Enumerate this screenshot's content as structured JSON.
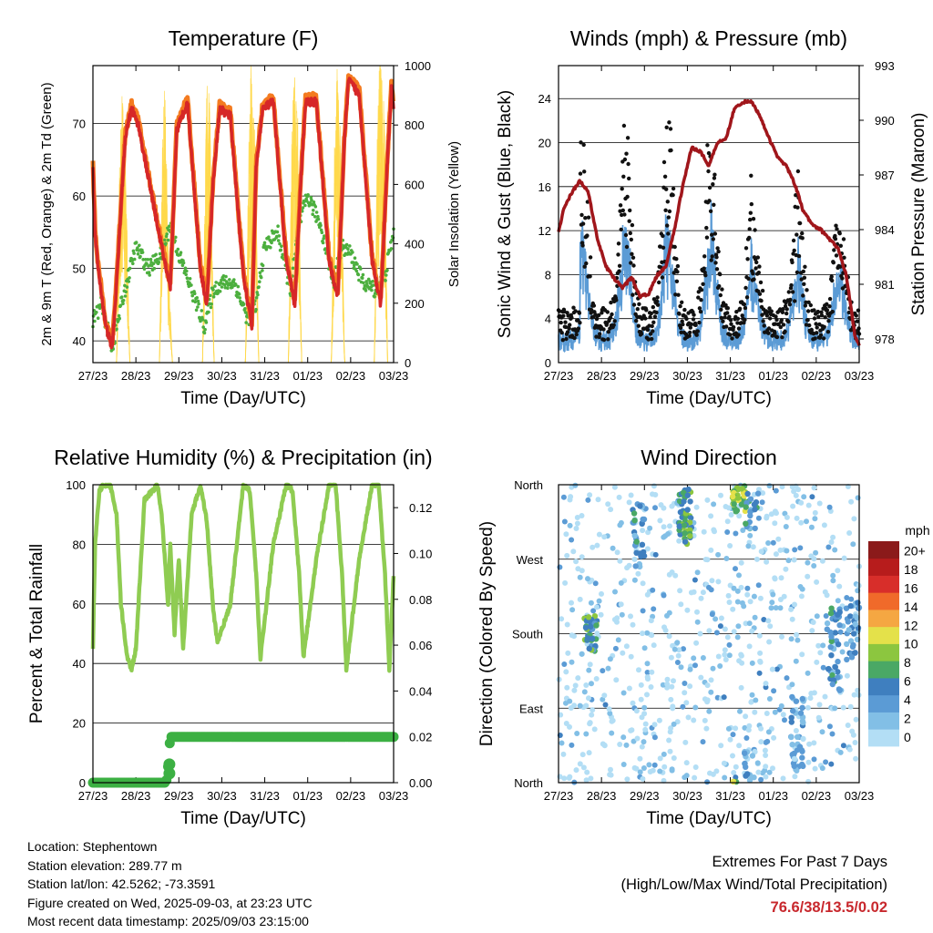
{
  "x_ticks": [
    "27/23",
    "28/23",
    "29/23",
    "30/23",
    "31/23",
    "01/23",
    "02/23",
    "03/23"
  ],
  "xlabel": "Time (Day/UTC)",
  "colors": {
    "temp_2m": "#d62728",
    "temp_9m": "#f47b20",
    "dewpoint": "#4caf3e",
    "solar": "#ffd84a",
    "gust": "#111111",
    "wind": "#5b9bd5",
    "pressure": "#a0161b",
    "rh": "#8fcc52",
    "precip": "#3cb043",
    "extreme_text": "#c8282d"
  },
  "chart_data": [
    {
      "id": "temperature",
      "type": "line",
      "title": "Temperature (F)",
      "ylabel": "2m & 9m T (Red, Orange) & 2m Td (Green)",
      "y2label": "Solar Insolation (Yellow)",
      "ylim": [
        37,
        78
      ],
      "y2lim": [
        0,
        1000
      ],
      "yticks": [
        40,
        50,
        60,
        70
      ],
      "y2ticks": [
        0,
        200,
        400,
        600,
        800,
        1000
      ],
      "days": 7,
      "series": [
        {
          "key": "temp_2m",
          "x_days": [
            0,
            0.05,
            0.12,
            0.3,
            0.45,
            0.55,
            0.75,
            0.9,
            1.05,
            1.5,
            1.7,
            1.8,
            1.95,
            2.2,
            2.5,
            2.65,
            2.8,
            2.95,
            3.2,
            3.5,
            3.7,
            3.8,
            3.95,
            4.2,
            4.5,
            4.7,
            4.85,
            4.95,
            5.2,
            5.5,
            5.7,
            5.85,
            5.95,
            6.2,
            6.5,
            6.7,
            6.85,
            6.95,
            7.0
          ],
          "y": [
            64,
            55,
            50,
            42,
            39,
            48,
            68,
            72,
            70,
            56,
            50,
            47,
            69,
            73,
            50,
            45,
            62,
            72,
            71,
            49,
            42,
            64,
            72,
            73,
            51,
            45,
            63,
            73,
            73,
            51,
            46,
            67,
            76,
            74,
            51,
            45,
            64,
            75,
            72
          ]
        },
        {
          "key": "dewpoint",
          "x_days": [
            0,
            0.2,
            0.45,
            0.7,
            1.0,
            1.3,
            1.6,
            1.8,
            2.0,
            2.3,
            2.6,
            2.8,
            3.0,
            3.3,
            3.6,
            3.8,
            4.0,
            4.3,
            4.6,
            4.8,
            5.0,
            5.3,
            5.6,
            5.8,
            6.0,
            6.3,
            6.6,
            6.8,
            7.0
          ],
          "y": [
            43,
            45,
            39,
            46,
            53,
            50,
            52,
            56,
            52,
            47,
            42,
            47,
            48,
            48,
            43,
            45,
            53,
            55,
            47,
            56,
            60,
            56,
            48,
            53,
            52,
            48,
            47,
            49,
            55
          ]
        },
        {
          "key": "solar",
          "x_days": [
            0.55,
            0.62,
            0.68,
            0.78,
            0.86,
            1.55,
            1.62,
            1.68,
            1.75,
            1.85,
            2.55,
            2.6,
            2.65,
            2.72,
            2.82,
            3.55,
            3.62,
            3.68,
            3.78,
            3.86,
            4.55,
            4.62,
            4.68,
            4.78,
            4.86,
            5.55,
            5.62,
            5.68,
            5.78,
            5.86,
            6.55,
            6.62,
            6.68,
            6.78,
            6.86
          ],
          "y": [
            0,
            600,
            880,
            500,
            0,
            0,
            700,
            900,
            350,
            0,
            0,
            450,
            880,
            820,
            0,
            0,
            650,
            920,
            700,
            0,
            0,
            650,
            900,
            750,
            0,
            0,
            650,
            950,
            700,
            0,
            0,
            700,
            980,
            800,
            0
          ]
        }
      ]
    },
    {
      "id": "winds",
      "type": "scatter",
      "title": "Winds (mph) & Pressure (mb)",
      "ylabel": "Sonic Wind & Gust (Blue, Black)",
      "y2label": "Station Pressure (Maroon)",
      "ylim": [
        0,
        27
      ],
      "y2lim": [
        976.7,
        993
      ],
      "yticks": [
        0,
        4,
        8,
        12,
        16,
        20,
        24
      ],
      "y2ticks": [
        978,
        981,
        984,
        987,
        990,
        993
      ],
      "days": 7,
      "series": [
        {
          "key": "gust",
          "name": "Gust",
          "daily_peak_mph": [
            4,
            21,
            25,
            25,
            20,
            13,
            17,
            14
          ]
        },
        {
          "key": "wind",
          "name": "Sonic Wind",
          "daily_peak_mph": [
            3,
            13,
            14,
            13,
            14,
            8,
            11,
            9
          ]
        },
        {
          "key": "pressure",
          "x_days": [
            0,
            0.1,
            0.3,
            0.5,
            0.7,
            0.9,
            1.1,
            1.3,
            1.5,
            1.7,
            1.9,
            2.1,
            2.3,
            2.5,
            2.7,
            2.9,
            3.1,
            3.3,
            3.5,
            3.7,
            3.9,
            4.1,
            4.3,
            4.5,
            4.7,
            4.9,
            5.1,
            5.3,
            5.5,
            5.7,
            5.9,
            6.1,
            6.3,
            6.5,
            6.7,
            6.9,
            7.0
          ],
          "y": [
            983.8,
            985,
            986,
            986.7,
            986,
            983.5,
            982,
            981.3,
            980.8,
            981.4,
            980.3,
            980.5,
            981.5,
            982,
            984,
            986.5,
            988.5,
            988.3,
            987.5,
            988.8,
            989,
            990.7,
            991,
            991,
            990.2,
            989,
            988,
            987.5,
            986.5,
            985,
            984.3,
            984,
            983.5,
            983,
            981.5,
            978.2,
            977.7
          ]
        }
      ]
    },
    {
      "id": "humidity",
      "type": "line",
      "title": "Relative Humidity (%) & Precipitation (in)",
      "ylabel": "Percent & Total Rainfall",
      "ylim": [
        0,
        100
      ],
      "y2lim": [
        0,
        0.13
      ],
      "yticks": [
        0,
        20,
        40,
        60,
        80,
        100
      ],
      "y2ticks": [
        "0.00",
        "0.02",
        "0.04",
        "0.06",
        "0.08",
        "0.10",
        "0.12"
      ],
      "days": 7,
      "series": [
        {
          "key": "rh",
          "name": "Relative Humidity",
          "x_days": [
            0,
            0.05,
            0.15,
            0.25,
            0.4,
            0.55,
            0.65,
            0.8,
            0.9,
            1.0,
            1.2,
            1.5,
            1.6,
            1.75,
            1.8,
            1.9,
            2.0,
            2.1,
            2.3,
            2.5,
            2.65,
            2.8,
            2.9,
            3.2,
            3.5,
            3.65,
            3.8,
            3.9,
            4.2,
            4.5,
            4.65,
            4.8,
            4.9,
            5.2,
            5.5,
            5.65,
            5.8,
            5.9,
            6.2,
            6.5,
            6.65,
            6.8,
            6.9,
            7.0
          ],
          "y": [
            45,
            80,
            98,
            100,
            100,
            90,
            60,
            42,
            38,
            45,
            95,
            100,
            90,
            60,
            80,
            50,
            75,
            45,
            90,
            100,
            88,
            58,
            47,
            60,
            100,
            98,
            70,
            42,
            80,
            100,
            98,
            70,
            42,
            75,
            100,
            100,
            70,
            38,
            75,
            100,
            100,
            70,
            38,
            70
          ]
        },
        {
          "key": "precip",
          "name": "Total Rainfall",
          "x_days": [
            0,
            1.7,
            1.72,
            1.74,
            1.76,
            1.8,
            2.2,
            7.0
          ],
          "y": [
            0.0,
            0.0,
            0.002,
            0.004,
            0.01,
            0.02,
            0.02,
            0.02
          ]
        }
      ]
    },
    {
      "id": "direction",
      "type": "scatter",
      "title": "Wind Direction",
      "ylabel": "Direction (Colored By Speed)",
      "ylim": [
        0,
        360
      ],
      "yticks": [
        "North",
        "East",
        "South",
        "West",
        "North"
      ],
      "days": 7,
      "colorbar": {
        "unit": "mph",
        "labels": [
          "0",
          "2",
          "4",
          "6",
          "8",
          "10",
          "12",
          "14",
          "16",
          "18",
          "20+"
        ],
        "colors": [
          "#b3def5",
          "#82bfe6",
          "#5b9bd5",
          "#3f7fbf",
          "#4aa865",
          "#8cc63f",
          "#e4e14a",
          "#f5a742",
          "#f06a2a",
          "#d82e2a",
          "#b71c1c",
          "#8b1a1a"
        ]
      }
    }
  ],
  "footer": {
    "location": "Location: Stephentown",
    "elevation": "Station elevation: 289.77 m",
    "latlon": "Station lat/lon: 42.5262; -73.3591",
    "created": "Figure created on Wed, 2025-09-03, at 23:23 UTC",
    "latest": "Most recent data timestamp: 2025/09/03 23:15:00"
  },
  "extremes": {
    "title": "Extremes For Past 7 Days",
    "subtitle": "(High/Low/Max Wind/Total Precipitation)",
    "values": "76.6/38/13.5/0.02"
  }
}
